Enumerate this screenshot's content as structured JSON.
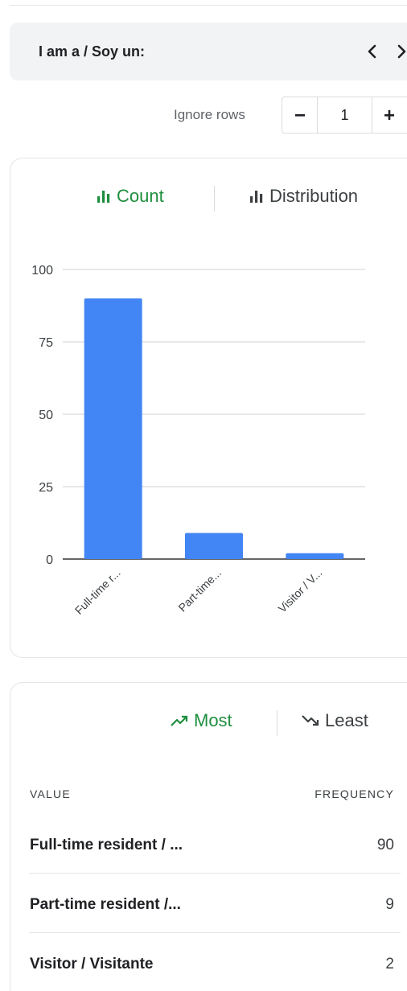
{
  "header": {
    "title": "I am a / Soy un:"
  },
  "controls": {
    "ignore_rows_label": "Ignore rows",
    "ignore_rows_value": "1",
    "minus_label": "−",
    "plus_label": "+"
  },
  "chart_tabs": {
    "count_label": "Count",
    "distribution_label": "Distribution",
    "active": "Count"
  },
  "chart_data": {
    "type": "bar",
    "categories": [
      "Full-time r...",
      "Part-time...",
      "Visitor / V..."
    ],
    "values": [
      90,
      9,
      2
    ],
    "ylim": [
      0,
      100
    ],
    "yticks": [
      0,
      25,
      50,
      75,
      100
    ],
    "grid": true,
    "title": "",
    "xlabel": "",
    "ylabel": "",
    "bar_color": "#4285f4"
  },
  "freq_tabs": {
    "most_label": "Most",
    "least_label": "Least",
    "active": "Most"
  },
  "table": {
    "columns": [
      "VALUE",
      "FREQUENCY"
    ],
    "rows": [
      {
        "value": "Full-time resident / ...",
        "frequency": "90"
      },
      {
        "value": "Part-time resident /...",
        "frequency": "9"
      },
      {
        "value": "Visitor / Visitante",
        "frequency": "2"
      }
    ]
  },
  "colors": {
    "accent": "#1e8e3e",
    "bar": "#4285f4",
    "header_bg": "#f1f3f4"
  }
}
